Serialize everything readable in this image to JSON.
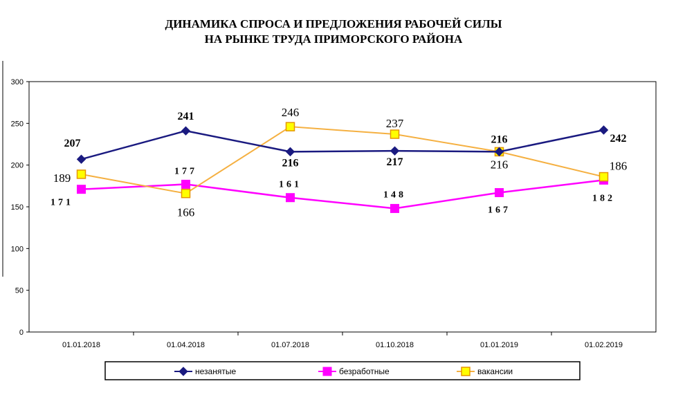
{
  "chart_data": {
    "type": "line",
    "title_lines": [
      "ДИНАМИКА СПРОСА И ПРЕДЛОЖЕНИЯ РАБОЧЕЙ СИЛЫ",
      "НА РЫНКЕ ТРУДА ПРИМОРСКОГО РАЙОНА"
    ],
    "categories": [
      "01.01.2018",
      "01.04.2018",
      "01.07.2018",
      "01.10.2018",
      "01.01.2019",
      "01.02.2019"
    ],
    "ylim": [
      0,
      300
    ],
    "yticks": [
      0,
      50,
      100,
      150,
      200,
      250,
      300
    ],
    "grid": false,
    "legend_position": "bottom",
    "series": [
      {
        "name": "незанятые",
        "values": [
          207,
          241,
          216,
          217,
          216,
          242
        ],
        "color": "#1a1a80",
        "marker": "diamond",
        "label_style": "bold"
      },
      {
        "name": "безработные",
        "values": [
          171,
          177,
          161,
          148,
          167,
          182
        ],
        "color": "#ff00ff",
        "marker": "square",
        "label_style": "spaced"
      },
      {
        "name": "вакансии",
        "values": [
          189,
          166,
          246,
          237,
          216,
          186
        ],
        "color": "#f5b041",
        "marker": "square-yellow",
        "label_style": "plain"
      }
    ]
  }
}
